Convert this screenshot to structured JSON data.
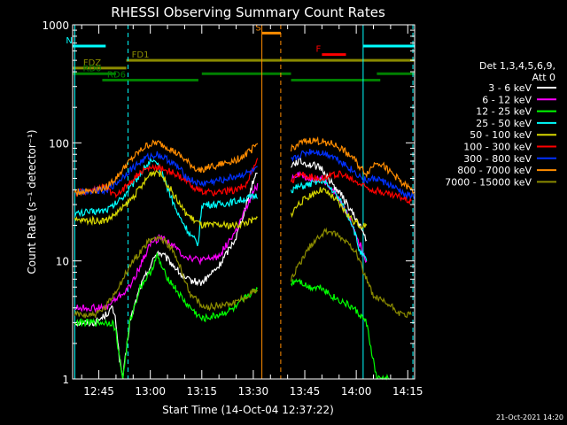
{
  "chart_data": {
    "type": "line",
    "title": "RHESSI Observing Summary Count Rates",
    "xlabel": "Start Time (14-Oct-04 12:37:22)",
    "ylabel": "Count Rate (s⁻¹ detector⁻¹)",
    "yscale": "log",
    "ylim": [
      1,
      1000
    ],
    "xlim_minutes": [
      37.37,
      137.0
    ],
    "x_tick_labels": [
      {
        "label": "12:45",
        "t": 45
      },
      {
        "label": "13:00",
        "t": 60
      },
      {
        "label": "13:15",
        "t": 75
      },
      {
        "label": "13:30",
        "t": 90
      },
      {
        "label": "13:45",
        "t": 105
      },
      {
        "label": "14:00",
        "t": 120
      },
      {
        "label": "14:15",
        "t": 135
      }
    ],
    "y_tick_labels": [
      {
        "label": "1",
        "v": 1
      },
      {
        "label": "10",
        "v": 10
      },
      {
        "label": "100",
        "v": 100
      },
      {
        "label": "1000",
        "v": 1000
      }
    ],
    "legend": {
      "header": [
        "Det 1,3,4,5,6,9,",
        "Att 0"
      ],
      "placement": "right",
      "entries": [
        {
          "label": "3 - 6 keV",
          "color": "#ffffff"
        },
        {
          "label": "6 - 12 keV",
          "color": "#ff00ff"
        },
        {
          "label": "12 - 25 keV",
          "color": "#00ff00"
        },
        {
          "label": "25 - 50 keV",
          "color": "#00ffff"
        },
        {
          "label": "50 - 100 keV",
          "color": "#d7d700"
        },
        {
          "label": "100 - 300 keV",
          "color": "#ff0000"
        },
        {
          "label": "300 - 800 keV",
          "color": "#0030ff"
        },
        {
          "label": "800 - 7000 keV",
          "color": "#ff8c00"
        },
        {
          "label": "7000 - 15000 keV",
          "color": "#8b8b00"
        }
      ]
    },
    "flags": [
      {
        "label": "N",
        "color": "#00ffff",
        "segments": [
          [
            37.4,
            47
          ],
          [
            122,
            137
          ]
        ],
        "level": 660
      },
      {
        "label": "S",
        "color": "#ff8c00",
        "segments": [
          [
            92.5,
            98
          ]
        ],
        "level": 850
      },
      {
        "label": "F",
        "color": "#ff0000",
        "segments": [
          [
            110,
            117
          ]
        ],
        "level": 560
      },
      {
        "label": "FD1",
        "color": "#8b8b00",
        "segments": [
          [
            53,
            137
          ]
        ],
        "level": 500
      },
      {
        "label": "FDZ",
        "color": "#8b8b00",
        "segments": [
          [
            37.4,
            53
          ]
        ],
        "level": 430
      },
      {
        "label": "RD0",
        "color": "#008000",
        "segments": [
          [
            37.4,
            50
          ],
          [
            75,
            101
          ],
          [
            126,
            137
          ]
        ],
        "level": 385
      },
      {
        "label": "RD6",
        "color": "#008000",
        "segments": [
          [
            46,
            74
          ],
          [
            101,
            127
          ]
        ],
        "level": 340
      }
    ],
    "vlines": [
      {
        "t": 38,
        "color": "#00ffff",
        "style": "solid"
      },
      {
        "t": 53.5,
        "color": "#00ffff",
        "style": "dash"
      },
      {
        "t": 92.5,
        "color": "#ff8c00",
        "style": "solid"
      },
      {
        "t": 98,
        "color": "#ff8c00",
        "style": "dash"
      },
      {
        "t": 122,
        "color": "#00ffff",
        "style": "solid"
      },
      {
        "t": 136.5,
        "color": "#00ffff",
        "style": "dash"
      }
    ],
    "series": [
      {
        "name": "3 - 6 keV",
        "color": "#ffffff",
        "x": [
          38,
          44,
          47,
          49,
          50,
          51,
          52,
          54,
          57,
          60,
          62,
          64,
          67,
          70,
          75,
          80,
          85,
          88,
          90,
          91.5,
          101,
          103,
          106,
          108,
          110,
          113,
          116,
          119,
          121,
          123
        ],
        "y": [
          3,
          3,
          3.5,
          4,
          3,
          1.5,
          1,
          3,
          6,
          9,
          12,
          11,
          9,
          7,
          6.5,
          9,
          16,
          30,
          48,
          60,
          65,
          70,
          66,
          64,
          60,
          45,
          35,
          25,
          20,
          15
        ]
      },
      {
        "name": "6 - 12 keV",
        "color": "#ff00ff",
        "x": [
          38,
          47,
          49,
          51,
          54,
          57,
          60,
          63,
          66,
          70,
          75,
          80,
          85,
          88,
          90,
          91.5,
          101,
          103,
          106,
          108,
          110,
          113,
          116,
          119,
          121,
          123
        ],
        "y": [
          4,
          4,
          4.5,
          5,
          6,
          9,
          14,
          16,
          14,
          11,
          10,
          11,
          18,
          28,
          38,
          45,
          50,
          55,
          50,
          49,
          50,
          40,
          30,
          20,
          14,
          10
        ]
      },
      {
        "name": "12 - 25 keV",
        "color": "#00ff00",
        "x": [
          38,
          44,
          47,
          49,
          50,
          51,
          52,
          54,
          57,
          60,
          62,
          64,
          67,
          70,
          75,
          80,
          85,
          88,
          90,
          91.5,
          101,
          103,
          106,
          110,
          113,
          116,
          119,
          121,
          123,
          124,
          126,
          128,
          130
        ],
        "y": [
          3,
          3,
          3,
          3,
          2.5,
          1.5,
          1,
          3,
          6,
          8,
          11,
          8,
          6,
          4.5,
          3.2,
          3.5,
          4,
          5,
          5.5,
          6,
          6.5,
          7,
          6,
          6,
          5,
          4.5,
          4,
          3.5,
          3,
          2,
          1,
          1,
          1
        ]
      },
      {
        "name": "25 - 50 keV",
        "color": "#00ffff",
        "x": [
          38,
          47,
          49,
          52,
          55,
          58,
          60,
          62,
          64,
          66,
          68,
          70,
          72,
          74,
          75,
          80,
          85,
          90,
          91.5,
          101,
          103,
          106,
          108,
          110,
          113,
          116,
          119,
          121,
          123
        ],
        "y": [
          25,
          27,
          29,
          35,
          45,
          60,
          70,
          65,
          50,
          35,
          25,
          20,
          16,
          14,
          30,
          30,
          32,
          35,
          36,
          40,
          42,
          44,
          46,
          48,
          40,
          30,
          20,
          12,
          10
        ]
      },
      {
        "name": "50 - 100 keV",
        "color": "#d7d700",
        "x": [
          38,
          47,
          49,
          52,
          55,
          58,
          60,
          62,
          64,
          66,
          68,
          70,
          72,
          74,
          75,
          80,
          85,
          90,
          91.5,
          101,
          103,
          106,
          108,
          110,
          113,
          116,
          119,
          121,
          123
        ],
        "y": [
          22,
          22,
          24,
          28,
          35,
          45,
          55,
          58,
          50,
          40,
          32,
          26,
          23,
          21,
          20,
          20,
          20,
          22,
          23,
          25,
          30,
          35,
          38,
          40,
          35,
          28,
          22,
          20,
          20
        ]
      },
      {
        "name": "100 - 300 keV",
        "color": "#ff0000",
        "x": [
          38,
          44,
          47,
          49,
          52,
          55,
          58,
          61,
          64,
          67,
          70,
          73,
          75,
          80,
          85,
          88,
          90,
          91.5,
          101,
          103,
          106,
          109,
          112,
          115,
          118,
          121,
          123,
          125,
          128,
          130,
          133,
          136
        ],
        "y": [
          38,
          40,
          42,
          36,
          40,
          50,
          58,
          62,
          60,
          55,
          48,
          42,
          38,
          38,
          40,
          45,
          60,
          80,
          45,
          55,
          52,
          50,
          52,
          55,
          50,
          45,
          42,
          40,
          38,
          36,
          35,
          32
        ]
      },
      {
        "name": "300 - 800 keV",
        "color": "#0030ff",
        "x": [
          38,
          44,
          47,
          50,
          53,
          56,
          59,
          62,
          65,
          68,
          71,
          74,
          75,
          80,
          85,
          88,
          90,
          91.5,
          101,
          104,
          107,
          110,
          113,
          116,
          119,
          121,
          123,
          126,
          129,
          132,
          135,
          137
        ],
        "y": [
          38,
          40,
          40,
          45,
          55,
          65,
          75,
          80,
          72,
          62,
          50,
          45,
          45,
          48,
          52,
          55,
          57,
          60,
          70,
          80,
          85,
          82,
          78,
          68,
          58,
          52,
          48,
          50,
          45,
          40,
          36,
          35
        ]
      },
      {
        "name": "800 - 7000 keV",
        "color": "#ff8c00",
        "x": [
          38,
          44,
          47,
          50,
          53,
          56,
          59,
          62,
          65,
          68,
          71,
          74,
          75,
          80,
          85,
          88,
          90,
          91.5,
          101,
          104,
          107,
          110,
          113,
          116,
          119,
          121,
          123,
          126,
          129,
          132,
          135,
          137
        ],
        "y": [
          38,
          40,
          42,
          50,
          65,
          80,
          95,
          100,
          92,
          80,
          68,
          58,
          60,
          65,
          72,
          80,
          90,
          100,
          90,
          100,
          105,
          102,
          98,
          88,
          75,
          62,
          55,
          70,
          60,
          50,
          42,
          38
        ]
      },
      {
        "name": "7000 - 15000 keV",
        "color": "#8b8b00",
        "x": [
          38,
          44,
          47,
          49,
          52,
          55,
          58,
          60,
          62,
          64,
          66,
          68,
          70,
          72,
          74,
          75,
          80,
          85,
          88,
          90,
          91.5,
          101,
          104,
          107,
          110,
          112,
          115,
          118,
          120,
          121,
          123,
          125,
          128,
          131,
          133,
          136
        ],
        "y": [
          3.5,
          3.5,
          4,
          5,
          7,
          10,
          13,
          15,
          16,
          15,
          13,
          10,
          7,
          5,
          4.5,
          4,
          4.2,
          4.5,
          5,
          5.5,
          6,
          7,
          10,
          14,
          17,
          18,
          16,
          14,
          12,
          10,
          7,
          5,
          4.5,
          4,
          3.5,
          3.5
        ]
      }
    ],
    "footer": "21-Oct-2021 14:20"
  }
}
